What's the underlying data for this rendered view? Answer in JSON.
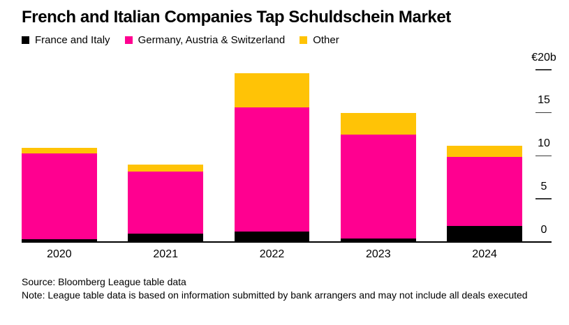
{
  "title": "French and Italian Companies Tap Schuldschein Market",
  "chart_data": {
    "type": "bar",
    "stacked": true,
    "title": "French and Italian Companies Tap Schuldschein Market",
    "unit": "€b",
    "categories": [
      "2020",
      "2021",
      "2022",
      "2023",
      "2024"
    ],
    "series": [
      {
        "name": "France and Italy",
        "color": "#000000",
        "values": [
          0.3,
          1.0,
          1.2,
          0.4,
          1.9
        ]
      },
      {
        "name": "Germany, Austria & Switzerland",
        "color": "#ff0090",
        "values": [
          10.0,
          7.2,
          14.4,
          12.1,
          8.0
        ]
      },
      {
        "name": "Other",
        "color": "#ffc306",
        "values": [
          0.6,
          0.8,
          4.0,
          2.5,
          1.3
        ]
      }
    ],
    "totals": [
      10.9,
      9.0,
      19.6,
      15.0,
      11.2
    ],
    "ylim": [
      0,
      20
    ],
    "yticks": [
      {
        "value": 20,
        "label": "€20b"
      },
      {
        "value": 15,
        "label": "15"
      },
      {
        "value": 10,
        "label": "10"
      },
      {
        "value": 5,
        "label": "5"
      },
      {
        "value": 0,
        "label": "0"
      }
    ],
    "xlabel": "",
    "ylabel": "€20b",
    "grid": false,
    "legend_position": "top-left",
    "axis_side": "right"
  },
  "footer": {
    "source": "Source: Bloomberg League table data",
    "note": "Note: League table data is based on information submitted by bank arrangers and may not include all deals executed"
  }
}
